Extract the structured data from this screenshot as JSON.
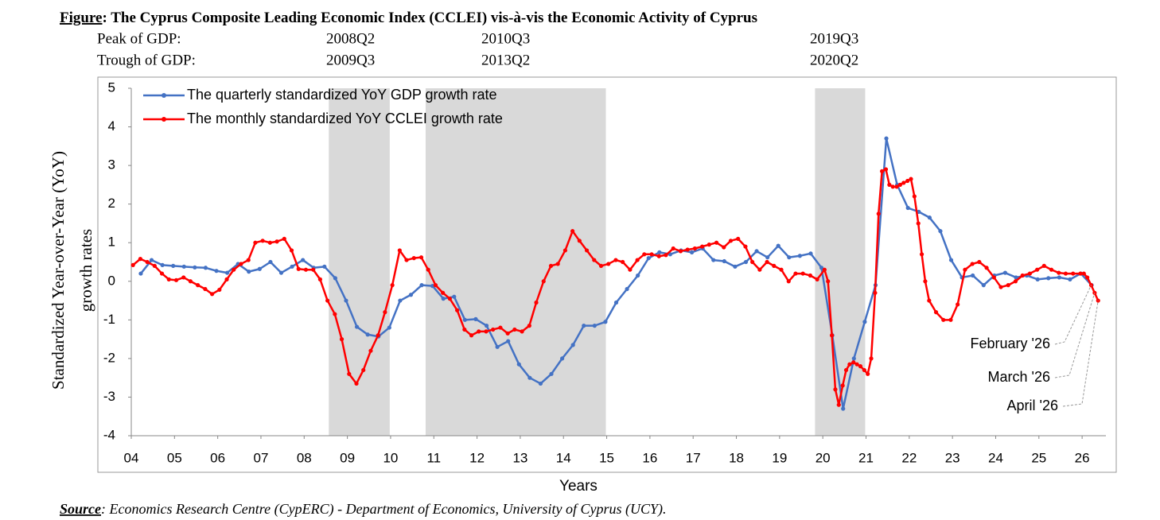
{
  "chart_data": {
    "type": "line",
    "title_prefix": "Figure",
    "title": ": The Cyprus Composite Leading Economic Index (CCLEI) vis-à-vis the Economic Activity of Cyprus",
    "turning_points": [
      {
        "label": "Peak of GDP:",
        "dates": [
          "2008Q2",
          "2010Q3",
          "2019Q3"
        ]
      },
      {
        "label": "Trough of GDP:",
        "dates": [
          "2009Q3",
          "2013Q2",
          "2020Q2"
        ]
      }
    ],
    "recessions": [
      [
        8.57,
        9.98
      ],
      [
        10.81,
        14.98
      ],
      [
        19.82,
        20.98
      ]
    ],
    "recession_color": "#d9d9d9",
    "x_label": "Years",
    "y_label": [
      "Standardized Year-over-Year (YoY)",
      "growth rates"
    ],
    "xlim": [
      4,
      26.55
    ],
    "ylim": [
      -4,
      5
    ],
    "xticks": [
      {
        "value": 4,
        "label": "04"
      },
      {
        "value": 5,
        "label": "05"
      },
      {
        "value": 6,
        "label": "06"
      },
      {
        "value": 7,
        "label": "07"
      },
      {
        "value": 8,
        "label": "08"
      },
      {
        "value": 9,
        "label": "09"
      },
      10,
      11,
      12,
      13,
      14,
      15,
      16,
      17,
      18,
      19,
      20,
      21,
      22,
      23,
      24,
      25,
      26
    ],
    "yticks": [
      -4,
      -3,
      -2,
      -1,
      0,
      1,
      2,
      3,
      4,
      5
    ],
    "grid": false,
    "legend": "upper left",
    "series": [
      {
        "name": "The quarterly standardized YoY GDP growth rate",
        "color": "#4472c4",
        "x": [
          4.22,
          4.47,
          4.72,
          4.97,
          5.22,
          5.47,
          5.72,
          5.97,
          6.22,
          6.47,
          6.72,
          6.97,
          7.22,
          7.47,
          7.72,
          7.97,
          8.22,
          8.47,
          8.72,
          8.97,
          9.22,
          9.47,
          9.72,
          9.97,
          10.22,
          10.47,
          10.72,
          10.97,
          11.22,
          11.47,
          11.72,
          11.97,
          12.22,
          12.47,
          12.72,
          12.97,
          13.22,
          13.47,
          13.72,
          13.97,
          14.22,
          14.47,
          14.72,
          14.97,
          15.22,
          15.47,
          15.72,
          15.97,
          16.22,
          16.47,
          16.72,
          16.97,
          17.22,
          17.47,
          17.72,
          17.97,
          18.22,
          18.47,
          18.72,
          18.97,
          19.22,
          19.47,
          19.72,
          19.97,
          20.22,
          20.47,
          20.72,
          20.97,
          21.22,
          21.47,
          21.72,
          21.97,
          22.22,
          22.47,
          22.72,
          22.97,
          23.22,
          23.47,
          23.72,
          23.97,
          24.22,
          24.47,
          24.72,
          24.97,
          25.22,
          25.47,
          25.72,
          25.97,
          26.22
        ],
        "values": [
          0.2,
          0.55,
          0.42,
          0.4,
          0.38,
          0.36,
          0.35,
          0.27,
          0.22,
          0.45,
          0.25,
          0.32,
          0.5,
          0.22,
          0.38,
          0.55,
          0.35,
          0.38,
          0.08,
          -0.5,
          -1.18,
          -1.38,
          -1.43,
          -1.2,
          -0.5,
          -0.35,
          -0.1,
          -0.12,
          -0.45,
          -0.4,
          -1.0,
          -0.98,
          -1.15,
          -1.7,
          -1.55,
          -2.15,
          -2.5,
          -2.65,
          -2.4,
          -2.0,
          -1.65,
          -1.15,
          -1.15,
          -1.05,
          -0.55,
          -0.2,
          0.15,
          0.6,
          0.75,
          0.7,
          0.8,
          0.75,
          0.85,
          0.55,
          0.52,
          0.38,
          0.5,
          0.78,
          0.62,
          0.92,
          0.62,
          0.66,
          0.72,
          0.35,
          -1.4,
          -3.3,
          -2.0,
          -1.05,
          -0.1,
          3.7,
          2.5,
          1.9,
          1.8,
          1.65,
          1.3,
          0.55,
          0.1,
          0.15,
          -0.1,
          0.15,
          0.22,
          0.1,
          0.15,
          0.05,
          0.08,
          0.1,
          0.05,
          0.2,
          -0.1
        ]
      },
      {
        "name": "The monthly standardized YoY CCLEI growth rate",
        "color": "#ff0000",
        "x": [
          4.04,
          4.21,
          4.37,
          4.54,
          4.71,
          4.87,
          5.04,
          5.21,
          5.37,
          5.54,
          5.71,
          5.87,
          6.04,
          6.21,
          6.37,
          6.54,
          6.71,
          6.87,
          7.04,
          7.21,
          7.37,
          7.54,
          7.71,
          7.87,
          8.04,
          8.21,
          8.37,
          8.54,
          8.71,
          8.87,
          9.04,
          9.21,
          9.37,
          9.54,
          9.71,
          9.87,
          10.04,
          10.21,
          10.37,
          10.54,
          10.71,
          10.87,
          11.04,
          11.21,
          11.37,
          11.54,
          11.71,
          11.87,
          12.04,
          12.21,
          12.37,
          12.54,
          12.71,
          12.87,
          13.04,
          13.21,
          13.37,
          13.54,
          13.71,
          13.87,
          14.04,
          14.21,
          14.37,
          14.54,
          14.71,
          14.87,
          15.04,
          15.21,
          15.37,
          15.54,
          15.71,
          15.87,
          16.04,
          16.21,
          16.37,
          16.54,
          16.71,
          16.87,
          17.04,
          17.21,
          17.37,
          17.54,
          17.71,
          17.87,
          18.04,
          18.21,
          18.37,
          18.54,
          18.71,
          18.87,
          19.04,
          19.21,
          19.37,
          19.54,
          19.71,
          19.87,
          20.04,
          20.12,
          20.21,
          20.29,
          20.37,
          20.46,
          20.54,
          20.62,
          20.71,
          20.79,
          20.87,
          20.96,
          21.04,
          21.12,
          21.21,
          21.29,
          21.37,
          21.46,
          21.54,
          21.62,
          21.71,
          21.79,
          21.87,
          21.96,
          22.04,
          22.12,
          22.21,
          22.29,
          22.37,
          22.46,
          22.62,
          22.79,
          22.96,
          23.12,
          23.29,
          23.46,
          23.62,
          23.79,
          23.96,
          24.12,
          24.29,
          24.46,
          24.62,
          24.79,
          24.96,
          25.12,
          25.29,
          25.46,
          25.62,
          25.79,
          25.96,
          26.04,
          26.12,
          26.21,
          26.29,
          26.37
        ],
        "values": [
          0.42,
          0.58,
          0.5,
          0.4,
          0.2,
          0.05,
          0.03,
          0.1,
          0.0,
          -0.1,
          -0.2,
          -0.33,
          -0.22,
          0.05,
          0.3,
          0.45,
          0.55,
          1.0,
          1.05,
          1.0,
          1.03,
          1.1,
          0.8,
          0.32,
          0.3,
          0.3,
          0.05,
          -0.5,
          -0.85,
          -1.5,
          -2.4,
          -2.65,
          -2.3,
          -1.8,
          -1.4,
          -0.8,
          -0.1,
          0.8,
          0.55,
          0.6,
          0.62,
          0.3,
          -0.1,
          -0.3,
          -0.45,
          -0.75,
          -1.25,
          -1.4,
          -1.3,
          -1.3,
          -1.25,
          -1.2,
          -1.35,
          -1.25,
          -1.3,
          -1.15,
          -0.55,
          0.0,
          0.4,
          0.45,
          0.8,
          1.3,
          1.05,
          0.8,
          0.55,
          0.4,
          0.45,
          0.55,
          0.5,
          0.3,
          0.55,
          0.7,
          0.7,
          0.65,
          0.68,
          0.85,
          0.78,
          0.82,
          0.85,
          0.9,
          0.95,
          1.0,
          0.88,
          1.05,
          1.1,
          0.9,
          0.5,
          0.3,
          0.5,
          0.4,
          0.3,
          0.0,
          0.2,
          0.2,
          0.15,
          0.05,
          0.3,
          0.0,
          -1.4,
          -2.8,
          -3.2,
          -2.7,
          -2.3,
          -2.15,
          -2.1,
          -2.15,
          -2.2,
          -2.3,
          -2.4,
          -2.0,
          -0.3,
          1.75,
          2.85,
          2.9,
          2.5,
          2.45,
          2.45,
          2.5,
          2.55,
          2.6,
          2.65,
          2.2,
          1.5,
          0.7,
          0.0,
          -0.5,
          -0.8,
          -1.0,
          -1.0,
          -0.6,
          0.3,
          0.45,
          0.5,
          0.35,
          0.1,
          -0.15,
          -0.1,
          0.0,
          0.15,
          0.2,
          0.3,
          0.4,
          0.3,
          0.22,
          0.2,
          0.2,
          0.2,
          0.2,
          0.1,
          -0.1,
          -0.3,
          -0.5
        ]
      }
    ],
    "annotations": [
      "February '26",
      "March '26",
      "April '26"
    ],
    "source_prefix": "Source",
    "source": ": Economics Research Centre (CypERC) - Department of Economics, University of Cyprus (UCY)."
  }
}
